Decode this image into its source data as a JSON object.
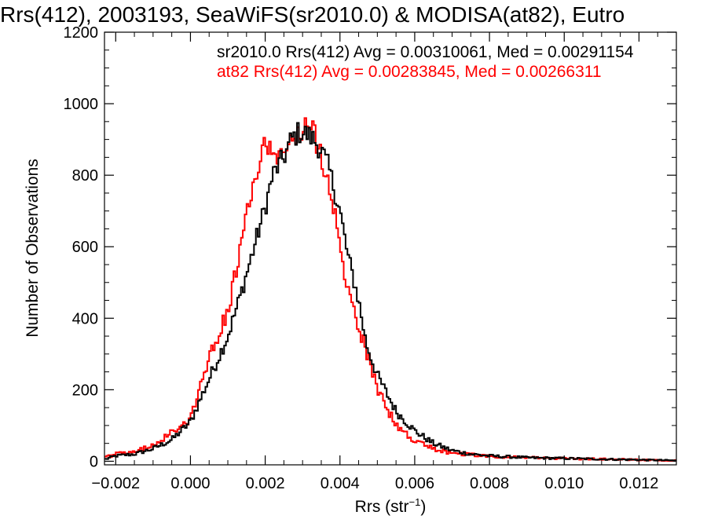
{
  "chart_data": {
    "type": "line",
    "title": "Rrs(412), 2003193, SeaWiFS(sr2010.0) & MODISA(at82), Eutro",
    "xlabel": "Rrs (str",
    "xlabel_sup": "−1",
    "xlabel_close": ")",
    "ylabel": "Number of Observations",
    "xlim": [
      -0.0023,
      0.013
    ],
    "ylim": [
      -10,
      1200
    ],
    "xticks": [
      -0.002,
      0.0,
      0.002,
      0.004,
      0.006,
      0.008,
      0.01,
      0.012
    ],
    "xtick_labels": [
      "−0.002",
      "0.000",
      "0.002",
      "0.004",
      "0.006",
      "0.008",
      "0.010",
      "0.012"
    ],
    "yticks": [
      0,
      200,
      400,
      600,
      800,
      1000,
      1200
    ],
    "ytick_labels": [
      "0",
      "200",
      "400",
      "600",
      "800",
      "1000",
      "1200"
    ],
    "grid": false,
    "annotations": [
      {
        "text": "sr2010.0 Rrs(412) Avg = 0.00310061, Med = 0.00291154",
        "color": "#000000"
      },
      {
        "text": "at82 Rrs(412) Avg = 0.00283845, Med = 0.00266311",
        "color": "#ff0000"
      }
    ],
    "series": [
      {
        "name": "sr2010.0",
        "color": "#000000",
        "style": "step",
        "x": [
          -0.0023,
          -0.002,
          -0.0015,
          -0.001,
          -0.0005,
          0.0,
          0.0005,
          0.001,
          0.0013,
          0.0016,
          0.002,
          0.0022,
          0.0025,
          0.0027,
          0.0029,
          0.0031,
          0.0033,
          0.0035,
          0.0037,
          0.004,
          0.0042,
          0.0045,
          0.0047,
          0.005,
          0.0055,
          0.006,
          0.0065,
          0.007,
          0.0075,
          0.008,
          0.009,
          0.01,
          0.011,
          0.012,
          0.013
        ],
        "y": [
          5,
          15,
          20,
          35,
          60,
          110,
          230,
          350,
          450,
          560,
          710,
          800,
          850,
          900,
          920,
          915,
          900,
          870,
          820,
          700,
          580,
          450,
          330,
          240,
          140,
          85,
          50,
          30,
          20,
          15,
          10,
          8,
          6,
          4,
          2
        ]
      },
      {
        "name": "at82",
        "color": "#ff0000",
        "style": "step",
        "x": [
          -0.0023,
          -0.002,
          -0.0015,
          -0.001,
          -0.0005,
          0.0,
          0.0005,
          0.001,
          0.0013,
          0.0015,
          0.0017,
          0.0019,
          0.0021,
          0.0023,
          0.0025,
          0.0027,
          0.0029,
          0.0031,
          0.0033,
          0.0035,
          0.0037,
          0.004,
          0.0042,
          0.0045,
          0.005,
          0.0055,
          0.006,
          0.0065,
          0.007,
          0.008,
          0.009,
          0.01,
          0.011,
          0.012,
          0.013
        ],
        "y": [
          10,
          20,
          25,
          45,
          80,
          120,
          290,
          420,
          570,
          680,
          780,
          870,
          880,
          850,
          880,
          890,
          910,
          930,
          920,
          850,
          780,
          620,
          480,
          380,
          200,
          100,
          55,
          35,
          22,
          14,
          10,
          8,
          6,
          4,
          2
        ]
      }
    ]
  }
}
